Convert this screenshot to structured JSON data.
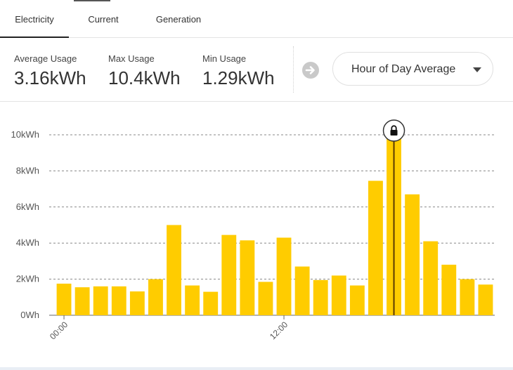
{
  "tabs": [
    {
      "label": "Electricity",
      "active": true
    },
    {
      "label": "Current",
      "active": false
    },
    {
      "label": "Generation",
      "active": false
    }
  ],
  "stats": [
    {
      "label": "Average Usage",
      "value": "3.16kWh"
    },
    {
      "label": "Max Usage",
      "value": "10.4kWh"
    },
    {
      "label": "Min Usage",
      "value": "1.29kWh"
    }
  ],
  "controls": {
    "arrow_icon": "arrow-right-icon",
    "dropdown_value": "Hour of Day Average",
    "dropdown_icon": "caret-down-icon"
  },
  "colors": {
    "bar": "#ffcc00",
    "highlight_line": "#5a3a00",
    "grid": "#888888"
  },
  "chart_data": {
    "type": "bar",
    "unit": "kWh",
    "categories": [
      "00",
      "01",
      "02",
      "03",
      "04",
      "05",
      "06",
      "07",
      "08",
      "09",
      "10",
      "11",
      "12",
      "13",
      "14",
      "15",
      "16",
      "17",
      "18",
      "19",
      "20",
      "21",
      "22",
      "23"
    ],
    "values": [
      1.75,
      1.55,
      1.6,
      1.6,
      1.32,
      2.0,
      5.0,
      1.65,
      1.3,
      4.45,
      4.15,
      1.85,
      4.3,
      2.7,
      1.95,
      2.2,
      1.65,
      7.45,
      10.4,
      6.7,
      4.1,
      2.8,
      2.0,
      1.7
    ],
    "xtick_labels": [
      "00:00",
      "12:00"
    ],
    "ytick_labels": [
      "0Wh",
      "2kWh",
      "4kWh",
      "6kWh",
      "8kWh",
      "10kWh"
    ],
    "yticks": [
      0,
      2,
      4,
      6,
      8,
      10
    ],
    "ylim": [
      0,
      10
    ],
    "grid": true,
    "highlighted_category": "18",
    "highlight_icon": "lock-icon"
  }
}
